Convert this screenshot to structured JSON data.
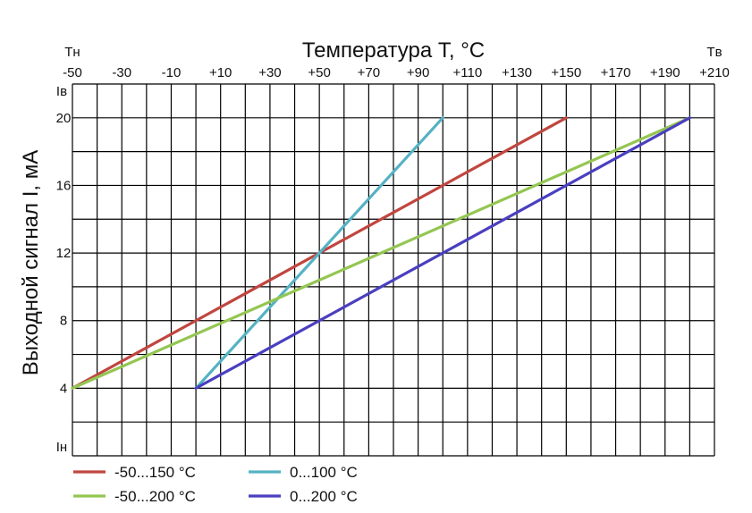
{
  "chart_data": {
    "type": "line",
    "title": "Температура T, °C",
    "ylabel": "Выходной сигнал I, мА",
    "xlim": [
      -50,
      210
    ],
    "ylim": [
      0,
      22
    ],
    "x_ticks": [
      -50,
      -30,
      -10,
      10,
      30,
      50,
      70,
      90,
      110,
      130,
      150,
      170,
      190,
      210
    ],
    "x_tick_labels": [
      "-50",
      "-30",
      "-10",
      "+10",
      "+30",
      "+50",
      "+70",
      "+90",
      "+110",
      "+130",
      "+150",
      "+170",
      "+190",
      "+210"
    ],
    "y_ticks": [
      4,
      8,
      12,
      16,
      20
    ],
    "y_tick_labels": [
      "4",
      "8",
      "12",
      "16",
      "20"
    ],
    "x_extra_labels": {
      "low": "Tн",
      "high": "Tв"
    },
    "y_extra_labels": {
      "low": "Iн",
      "high": "Iв"
    },
    "grid": true,
    "legend_position": "bottom-left",
    "series": [
      {
        "name": "-50...150 °C",
        "color": "#c0463f",
        "x": [
          -50,
          150
        ],
        "y": [
          4,
          20
        ]
      },
      {
        "name": "0...100 °C",
        "color": "#55b2c3",
        "x": [
          0,
          100
        ],
        "y": [
          4,
          20
        ]
      },
      {
        "name": "-50...200 °C",
        "color": "#94c652",
        "x": [
          -50,
          200
        ],
        "y": [
          4,
          20
        ]
      },
      {
        "name": "0...200 °C",
        "color": "#4a3fbf",
        "x": [
          0,
          200
        ],
        "y": [
          4,
          20
        ]
      }
    ]
  }
}
